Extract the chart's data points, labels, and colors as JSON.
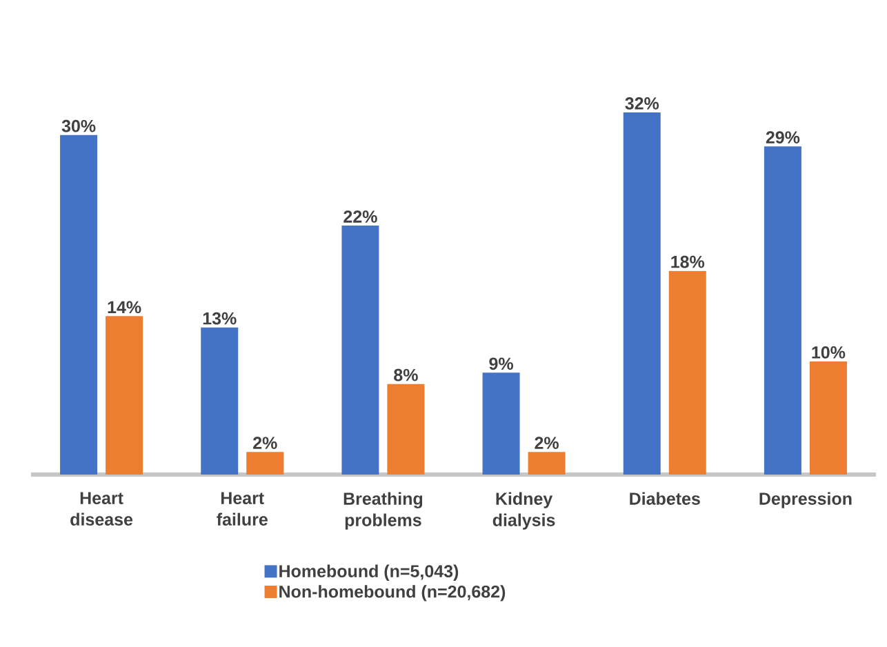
{
  "chart_data": {
    "type": "bar",
    "categories": [
      "Heart disease",
      "Heart failure",
      "Breathing problems",
      "Kidney dialysis",
      "Diabetes",
      "Depression"
    ],
    "series": [
      {
        "name": "Homebound (n=5,043)",
        "color": "#4472c4",
        "values": [
          30,
          13,
          22,
          9,
          32,
          29
        ],
        "value_labels": [
          "30%",
          "13%",
          "22%",
          "9%",
          "32%",
          "29%"
        ]
      },
      {
        "name": "Non-homebound (n=20,682)",
        "color": "#ed7d31",
        "values": [
          14,
          2,
          8,
          2,
          18,
          10
        ],
        "value_labels": [
          "14%",
          "2%",
          "8%",
          "2%",
          "18%",
          "10%"
        ]
      }
    ],
    "legend": "bottom"
  }
}
